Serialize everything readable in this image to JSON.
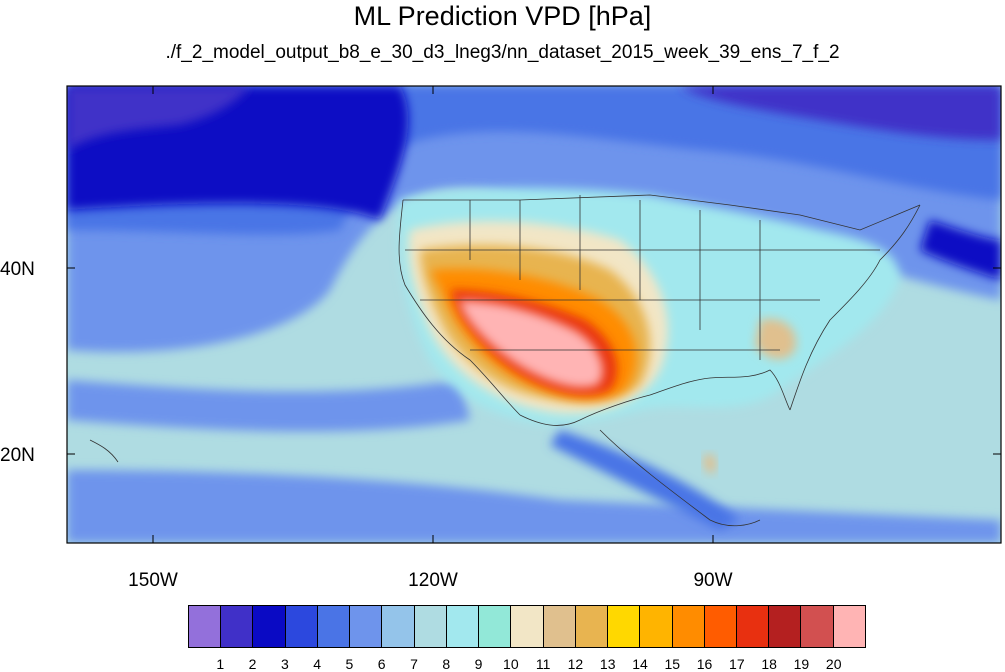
{
  "title": "ML Prediction VPD [hPa]",
  "subtitle": "./f_2_model_output_b8_e_30_d3_lneg3/nn_dataset_2015_week_39_ens_7_f_2",
  "axes": {
    "lon_ticks": [
      "150W",
      "120W",
      "90W"
    ],
    "lat_ticks": [
      "40N",
      "20N"
    ]
  },
  "colorbar": {
    "labels": [
      "1",
      "2",
      "3",
      "4",
      "5",
      "6",
      "7",
      "8",
      "9",
      "10",
      "11",
      "12",
      "13",
      "14",
      "15",
      "16",
      "17",
      "18",
      "19",
      "20"
    ],
    "colors": [
      "#9370db",
      "#4030c8",
      "#0a0ac4",
      "#2c48de",
      "#4a74e6",
      "#6e94ec",
      "#94c4ea",
      "#afdce2",
      "#a2e8ee",
      "#92e8d8",
      "#f2e6c6",
      "#e0c08e",
      "#e8b450",
      "#ffd800",
      "#ffb400",
      "#ff8c00",
      "#ff5c00",
      "#e83010",
      "#b42020",
      "#d25050",
      "#ffb4b4"
    ]
  },
  "map": {
    "ocean_color": "#94c4ea",
    "deep_ocean_color": "#4a74e6"
  }
}
